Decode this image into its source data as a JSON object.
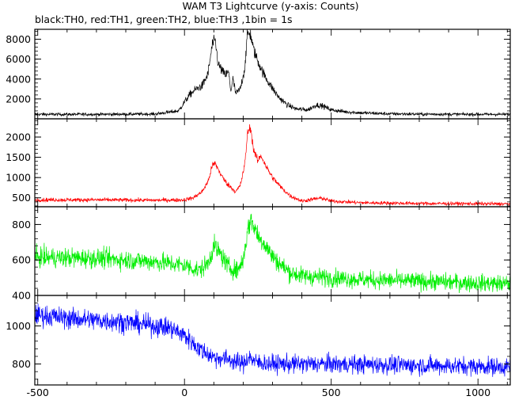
{
  "chart_data": {
    "type": "line",
    "title": "WAM T3 Lightcurve (y-axis: Counts)",
    "subtitle": "black:TH0, red:TH1, green:TH2, blue:TH3 ,1bin = 1s",
    "xlabel": "",
    "ylabel": "",
    "xlim": [
      -510,
      1110
    ],
    "x_ticks": [
      -500,
      0,
      500,
      1000
    ],
    "x_tick_labels": [
      "-500",
      "0",
      "500",
      "1000"
    ],
    "grid": false,
    "panels": [
      {
        "name": "TH0",
        "color": "#000000",
        "ylim": [
          0,
          9000
        ],
        "y_ticks": [
          2000,
          4000,
          6000,
          8000
        ],
        "y_tick_labels": [
          "2000",
          "4000",
          "6000",
          "8000"
        ],
        "x": [
          -510,
          -300,
          -100,
          -20,
          0,
          20,
          40,
          60,
          80,
          95,
          105,
          115,
          130,
          140,
          150,
          158,
          165,
          175,
          190,
          205,
          215,
          225,
          235,
          250,
          270,
          290,
          320,
          350,
          380,
          420,
          450,
          470,
          500,
          550,
          600,
          700,
          800,
          1000,
          1110
        ],
        "y": [
          450,
          450,
          480,
          800,
          1700,
          2500,
          3000,
          3300,
          4500,
          7500,
          7800,
          5500,
          4700,
          4400,
          4700,
          2800,
          4000,
          2500,
          3000,
          5000,
          8600,
          8500,
          7000,
          5800,
          4500,
          3500,
          2200,
          1400,
          1000,
          900,
          1400,
          1300,
          900,
          700,
          600,
          500,
          470,
          450,
          450
        ],
        "noise": 80
      },
      {
        "name": "TH1",
        "color": "#ff0000",
        "ylim": [
          280,
          2450
        ],
        "y_ticks": [
          500,
          1000,
          1500,
          2000
        ],
        "y_tick_labels": [
          "500",
          "1000",
          "1500",
          "2000"
        ],
        "x": [
          -510,
          -300,
          -100,
          0,
          30,
          60,
          80,
          95,
          105,
          115,
          130,
          145,
          160,
          175,
          190,
          205,
          215,
          225,
          235,
          250,
          260,
          280,
          300,
          330,
          360,
          400,
          450,
          470,
          500,
          600,
          800,
          1110
        ],
        "y": [
          450,
          450,
          440,
          450,
          500,
          650,
          900,
          1300,
          1350,
          1200,
          1000,
          850,
          750,
          650,
          800,
          1300,
          2100,
          2250,
          1700,
          1400,
          1550,
          1250,
          1000,
          750,
          550,
          420,
          480,
          490,
          420,
          380,
          360,
          350
        ],
        "noise": 25
      },
      {
        "name": "TH2",
        "color": "#00ee00",
        "ylim": [
          400,
          900
        ],
        "y_ticks": [
          400,
          600,
          800
        ],
        "y_tick_labels": [
          "400",
          "600",
          "800"
        ],
        "x": [
          -510,
          -300,
          -100,
          0,
          50,
          80,
          100,
          120,
          150,
          180,
          200,
          215,
          225,
          240,
          255,
          270,
          300,
          330,
          360,
          400,
          500,
          600,
          800,
          1000,
          1110
        ],
        "y": [
          615,
          610,
          590,
          570,
          540,
          580,
          680,
          640,
          560,
          540,
          600,
          760,
          830,
          780,
          720,
          700,
          620,
          570,
          530,
          510,
          500,
          490,
          480,
          470,
          465
        ],
        "noise": 28
      },
      {
        "name": "TH3",
        "color": "#0000ff",
        "ylim": [
          690,
          1160
        ],
        "y_ticks": [
          800,
          1000
        ],
        "y_tick_labels": [
          "800",
          "1000"
        ],
        "x": [
          -510,
          -400,
          -300,
          -200,
          -100,
          -50,
          0,
          50,
          100,
          150,
          200,
          220,
          240,
          300,
          400,
          500,
          700,
          900,
          1110
        ],
        "y": [
          1060,
          1040,
          1030,
          1020,
          1000,
          990,
          950,
          880,
          835,
          825,
          800,
          840,
          810,
          800,
          800,
          800,
          795,
          790,
          785
        ],
        "noise": 28
      }
    ]
  }
}
